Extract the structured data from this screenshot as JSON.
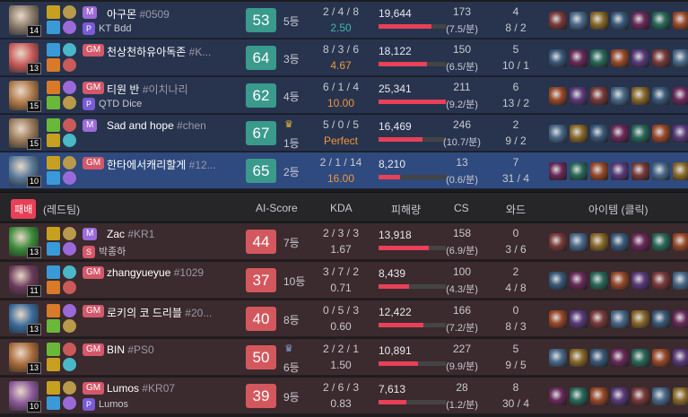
{
  "header": {
    "result": "패배",
    "team": "(레드팀)",
    "col_score": "AI-Score",
    "col_kda": "KDA",
    "col_damage": "피해량",
    "col_cs": "CS",
    "col_ward": "와드",
    "col_items": "아이템 (클릭)"
  },
  "blue": [
    {
      "level": "14",
      "tier": "M",
      "name": "아구몬",
      "tag": "#0509",
      "sub_icon": "P",
      "sub": "KT Bdd",
      "score": "53",
      "rank": "5등",
      "kda": "2 / 4 / 8",
      "ratio": "2.50",
      "damage": "19,644",
      "damage_pct": 0.78,
      "cs": "173",
      "cs_min": "(7.5/분)",
      "ward": "4",
      "ward2": "8 / 2",
      "champ_color": "#8a7a6a",
      "ratio_color": "#3fb8a8",
      "crown": ""
    },
    {
      "level": "13",
      "tier": "GM",
      "name": "천상천하유아독존",
      "tag": "#K...",
      "sub_icon": "",
      "sub": "",
      "score": "64",
      "rank": "3등",
      "kda": "8 / 3 / 6",
      "ratio": "4.67",
      "damage": "18,122",
      "damage_pct": 0.72,
      "cs": "150",
      "cs_min": "(6.5/분)",
      "ward": "5",
      "ward2": "10 / 1",
      "champ_color": "#c85a5a",
      "ratio_color": "#f0963a",
      "crown": ""
    },
    {
      "level": "15",
      "tier": "GM",
      "name": "티원 반",
      "tag": "#이치나리",
      "sub_icon": "P",
      "sub": "QTD Dice",
      "score": "62",
      "rank": "4등",
      "kda": "6 / 1 / 4",
      "ratio": "10.00",
      "damage": "25,341",
      "damage_pct": 1.0,
      "cs": "211",
      "cs_min": "(9.2/분)",
      "ward": "6",
      "ward2": "13 / 2",
      "champ_color": "#b07a4a",
      "ratio_color": "#f0963a",
      "crown": ""
    },
    {
      "level": "15",
      "tier": "M",
      "name": "Sad and hope",
      "tag": "#chen",
      "sub_icon": "",
      "sub": "",
      "score": "67",
      "rank": "1등",
      "kda": "5 / 0 / 5",
      "ratio": "Perfect",
      "damage": "16,469",
      "damage_pct": 0.65,
      "cs": "246",
      "cs_min": "(10.7/분)",
      "ward": "2",
      "ward2": "9 / 2",
      "champ_color": "#9a7a5a",
      "ratio_color": "#f0963a",
      "crown": "gold"
    },
    {
      "level": "10",
      "tier": "GM",
      "name": "한타에서캐리할게",
      "tag": "#12...",
      "sub_icon": "",
      "sub": "",
      "score": "65",
      "rank": "2등",
      "kda": "2 / 1 / 14",
      "ratio": "16.00",
      "damage": "8,210",
      "damage_pct": 0.32,
      "cs": "13",
      "cs_min": "(0.6/분)",
      "ward": "7",
      "ward2": "31 / 4",
      "champ_color": "#5a7a9a",
      "ratio_color": "#f0963a",
      "crown": ""
    }
  ],
  "red": [
    {
      "level": "13",
      "tier": "M",
      "name": "Zac",
      "tag": "#KR1",
      "sub_icon": "S",
      "sub": "박종하",
      "score": "44",
      "rank": "7등",
      "kda": "2 / 3 / 3",
      "ratio": "1.67",
      "damage": "13,918",
      "damage_pct": 0.75,
      "cs": "158",
      "cs_min": "(6.9/분)",
      "ward": "0",
      "ward2": "3 / 6",
      "champ_color": "#3a8a3a",
      "crown": ""
    },
    {
      "level": "11",
      "tier": "GM",
      "name": "zhangyueyue",
      "tag": "#1029",
      "sub_icon": "",
      "sub": "",
      "score": "37",
      "rank": "10등",
      "kda": "3 / 7 / 2",
      "ratio": "0.71",
      "damage": "8,439",
      "damage_pct": 0.45,
      "cs": "100",
      "cs_min": "(4.3/분)",
      "ward": "2",
      "ward2": "4 / 8",
      "champ_color": "#6a3a5a",
      "crown": ""
    },
    {
      "level": "13",
      "tier": "GM",
      "name": "로키의 코 드리블",
      "tag": "#20...",
      "sub_icon": "",
      "sub": "",
      "score": "40",
      "rank": "8등",
      "kda": "0 / 5 / 3",
      "ratio": "0.60",
      "damage": "12,422",
      "damage_pct": 0.67,
      "cs": "166",
      "cs_min": "(7.2/분)",
      "ward": "0",
      "ward2": "8 / 3",
      "champ_color": "#3a6a9a",
      "crown": ""
    },
    {
      "level": "13",
      "tier": "GM",
      "name": "BIN",
      "tag": "#PS0",
      "sub_icon": "",
      "sub": "",
      "score": "50",
      "rank": "6등",
      "kda": "2 / 2 / 1",
      "ratio": "1.50",
      "damage": "10,891",
      "damage_pct": 0.58,
      "cs": "227",
      "cs_min": "(9.9/분)",
      "ward": "5",
      "ward2": "9 / 5",
      "champ_color": "#a86a3a",
      "crown": "silver"
    },
    {
      "level": "10",
      "tier": "GM",
      "name": "Lumos",
      "tag": "#KR07",
      "sub_icon": "P",
      "sub": "Lumos",
      "score": "39",
      "rank": "9등",
      "kda": "2 / 6 / 3",
      "ratio": "0.83",
      "damage": "7,613",
      "damage_pct": 0.41,
      "cs": "28",
      "cs_min": "(1.2/분)",
      "ward": "8",
      "ward2": "30 / 4",
      "champ_color": "#8a5a9a",
      "crown": ""
    }
  ],
  "colors": {
    "accent_blue": "#2f4a7e",
    "accent_red": "#e84057",
    "win_score": "#3a9a8c",
    "lose_score": "#d3585e"
  }
}
